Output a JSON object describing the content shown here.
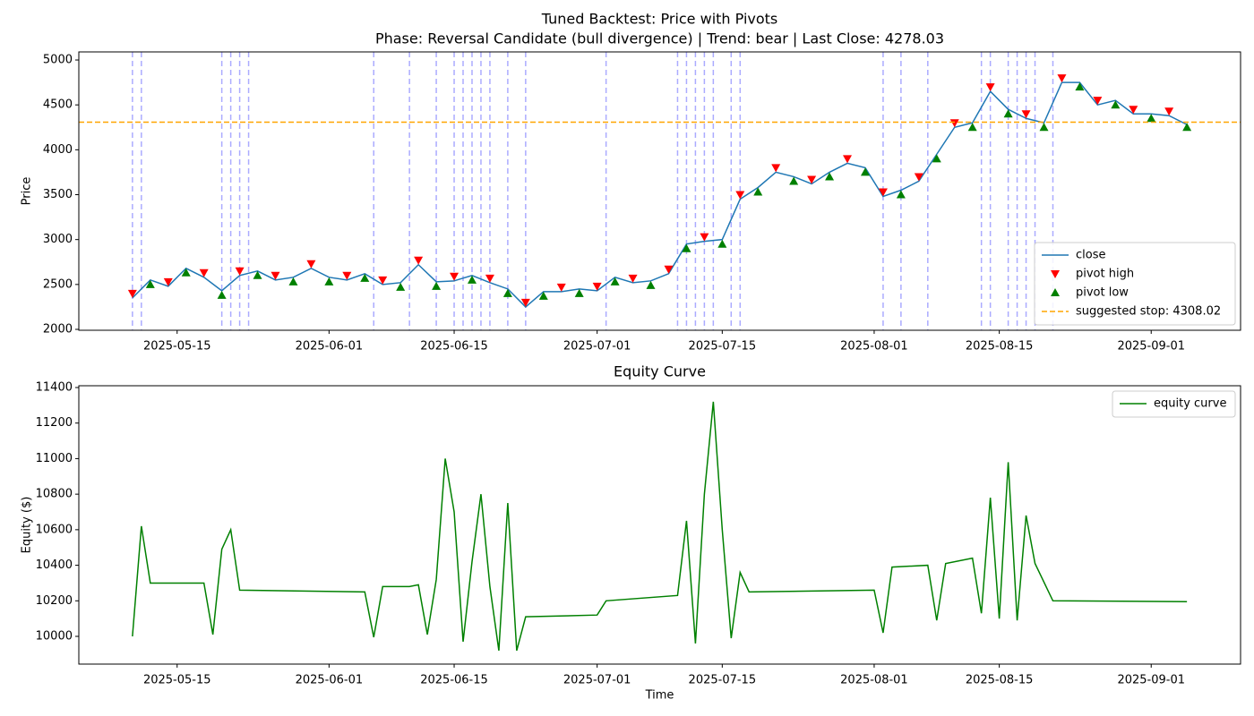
{
  "chart_data": [
    {
      "type": "line",
      "title": "Tuned Backtest: Price with Pivots",
      "subtitle": "Phase: Reversal Candidate (bull divergence) | Trend: bear | Last Close: 4278.03",
      "y_label": "Price",
      "xlim": [
        "2025-05-04",
        "2025-09-11"
      ],
      "xticks": [
        "2025-05-15",
        "2025-06-01",
        "2025-06-15",
        "2025-07-01",
        "2025-07-15",
        "2025-08-01",
        "2025-08-15",
        "2025-09-01"
      ],
      "ylim": [
        1990,
        5090
      ],
      "yticks": [
        2000,
        2500,
        3000,
        3500,
        4000,
        4500,
        5000
      ],
      "legend": "lower right",
      "series": [
        {
          "name": "close",
          "color": "#1f77b4",
          "x": [
            "2025-05-10",
            "2025-05-12",
            "2025-05-14",
            "2025-05-16",
            "2025-05-18",
            "2025-05-20",
            "2025-05-22",
            "2025-05-24",
            "2025-05-26",
            "2025-05-28",
            "2025-05-30",
            "2025-06-01",
            "2025-06-03",
            "2025-06-05",
            "2025-06-07",
            "2025-06-09",
            "2025-06-11",
            "2025-06-13",
            "2025-06-15",
            "2025-06-17",
            "2025-06-19",
            "2025-06-21",
            "2025-06-23",
            "2025-06-25",
            "2025-06-27",
            "2025-06-29",
            "2025-07-01",
            "2025-07-03",
            "2025-07-05",
            "2025-07-07",
            "2025-07-09",
            "2025-07-11",
            "2025-07-13",
            "2025-07-15",
            "2025-07-17",
            "2025-07-19",
            "2025-07-21",
            "2025-07-23",
            "2025-07-25",
            "2025-07-27",
            "2025-07-29",
            "2025-07-31",
            "2025-08-02",
            "2025-08-04",
            "2025-08-06",
            "2025-08-08",
            "2025-08-10",
            "2025-08-12",
            "2025-08-14",
            "2025-08-16",
            "2025-08-18",
            "2025-08-20",
            "2025-08-22",
            "2025-08-24",
            "2025-08-26",
            "2025-08-28",
            "2025-08-30",
            "2025-09-01",
            "2025-09-03",
            "2025-09-05"
          ],
          "values": [
            2350,
            2550,
            2480,
            2680,
            2580,
            2430,
            2600,
            2650,
            2550,
            2580,
            2680,
            2580,
            2550,
            2620,
            2500,
            2520,
            2720,
            2530,
            2540,
            2600,
            2520,
            2450,
            2250,
            2420,
            2420,
            2450,
            2430,
            2580,
            2520,
            2540,
            2620,
            2950,
            2980,
            3000,
            3450,
            3580,
            3750,
            3700,
            3620,
            3750,
            3850,
            3800,
            3480,
            3550,
            3650,
            3950,
            4250,
            4300,
            4650,
            4450,
            4350,
            4300,
            4750,
            4750,
            4500,
            4550,
            4400,
            4400,
            4380,
            4280
          ]
        },
        {
          "name": "pivot high",
          "color": "red",
          "marker": "triangle-down",
          "x": [
            "2025-05-10",
            "2025-05-14",
            "2025-05-18",
            "2025-05-22",
            "2025-05-26",
            "2025-05-30",
            "2025-06-03",
            "2025-06-07",
            "2025-06-11",
            "2025-06-15",
            "2025-06-19",
            "2025-06-23",
            "2025-06-27",
            "2025-07-01",
            "2025-07-05",
            "2025-07-09",
            "2025-07-13",
            "2025-07-17",
            "2025-07-21",
            "2025-07-25",
            "2025-07-29",
            "2025-08-02",
            "2025-08-06",
            "2025-08-10",
            "2025-08-14",
            "2025-08-18",
            "2025-08-22",
            "2025-08-26",
            "2025-08-30",
            "2025-09-03"
          ],
          "values": [
            2400,
            2530,
            2630,
            2650,
            2600,
            2730,
            2600,
            2550,
            2770,
            2590,
            2570,
            2300,
            2470,
            2480,
            2570,
            2670,
            3030,
            3500,
            3800,
            3670,
            3900,
            3530,
            3700,
            4300,
            4700,
            4400,
            4800,
            4550,
            4450,
            4430
          ]
        },
        {
          "name": "pivot low",
          "color": "green",
          "marker": "triangle-up",
          "x": [
            "2025-05-12",
            "2025-05-16",
            "2025-05-20",
            "2025-05-24",
            "2025-05-28",
            "2025-06-01",
            "2025-06-05",
            "2025-06-09",
            "2025-06-13",
            "2025-06-17",
            "2025-06-21",
            "2025-06-25",
            "2025-06-29",
            "2025-07-03",
            "2025-07-07",
            "2025-07-11",
            "2025-07-15",
            "2025-07-19",
            "2025-07-23",
            "2025-07-27",
            "2025-07-31",
            "2025-08-04",
            "2025-08-08",
            "2025-08-12",
            "2025-08-16",
            "2025-08-20",
            "2025-08-24",
            "2025-08-28",
            "2025-09-01",
            "2025-09-05"
          ],
          "values": [
            2500,
            2630,
            2380,
            2600,
            2530,
            2530,
            2570,
            2470,
            2480,
            2550,
            2400,
            2370,
            2400,
            2530,
            2490,
            2900,
            2950,
            3530,
            3650,
            3700,
            3750,
            3500,
            3900,
            4250,
            4400,
            4250,
            4700,
            4500,
            4350,
            4250
          ]
        }
      ],
      "hline": {
        "name": "suggested stop: 4308.02",
        "value": 4308.02,
        "color": "orange"
      },
      "vlines": {
        "color": "blue",
        "x": [
          "2025-05-10",
          "2025-05-11",
          "2025-05-20",
          "2025-05-21",
          "2025-05-22",
          "2025-05-23",
          "2025-06-06",
          "2025-06-10",
          "2025-06-13",
          "2025-06-15",
          "2025-06-16",
          "2025-06-17",
          "2025-06-18",
          "2025-06-19",
          "2025-06-21",
          "2025-06-23",
          "2025-07-02",
          "2025-07-10",
          "2025-07-11",
          "2025-07-12",
          "2025-07-13",
          "2025-07-14",
          "2025-07-16",
          "2025-07-17",
          "2025-08-02",
          "2025-08-04",
          "2025-08-07",
          "2025-08-13",
          "2025-08-14",
          "2025-08-16",
          "2025-08-17",
          "2025-08-18",
          "2025-08-19",
          "2025-08-21"
        ]
      }
    },
    {
      "type": "line",
      "title": "Equity Curve",
      "x_label": "Time",
      "y_label": "Equity ($)",
      "xlim": [
        "2025-05-04",
        "2025-09-11"
      ],
      "xticks": [
        "2025-05-15",
        "2025-06-01",
        "2025-06-15",
        "2025-07-01",
        "2025-07-15",
        "2025-08-01",
        "2025-08-15",
        "2025-09-01"
      ],
      "ylim": [
        9844,
        11410
      ],
      "yticks": [
        10000,
        10200,
        10400,
        10600,
        10800,
        11000,
        11200,
        11400
      ],
      "legend": "upper right",
      "series": [
        {
          "name": "equity curve",
          "color": "green",
          "x": [
            "2025-05-10",
            "2025-05-11",
            "2025-05-12",
            "2025-05-18",
            "2025-05-19",
            "2025-05-20",
            "2025-05-21",
            "2025-05-22",
            "2025-06-05",
            "2025-06-06",
            "2025-06-07",
            "2025-06-10",
            "2025-06-11",
            "2025-06-12",
            "2025-06-13",
            "2025-06-14",
            "2025-06-15",
            "2025-06-16",
            "2025-06-17",
            "2025-06-18",
            "2025-06-19",
            "2025-06-20",
            "2025-06-21",
            "2025-06-22",
            "2025-06-23",
            "2025-07-01",
            "2025-07-02",
            "2025-07-10",
            "2025-07-11",
            "2025-07-12",
            "2025-07-13",
            "2025-07-14",
            "2025-07-15",
            "2025-07-16",
            "2025-07-17",
            "2025-07-18",
            "2025-08-01",
            "2025-08-02",
            "2025-08-03",
            "2025-08-07",
            "2025-08-08",
            "2025-08-09",
            "2025-08-12",
            "2025-08-13",
            "2025-08-14",
            "2025-08-15",
            "2025-08-16",
            "2025-08-17",
            "2025-08-18",
            "2025-08-19",
            "2025-08-21",
            "2025-09-05"
          ],
          "values": [
            10000,
            10620,
            10300,
            10300,
            10010,
            10490,
            10600,
            10260,
            10250,
            9995,
            10280,
            10280,
            10290,
            10010,
            10320,
            11000,
            10700,
            9970,
            10420,
            10800,
            10280,
            9920,
            10750,
            9920,
            10110,
            10120,
            10200,
            10230,
            10650,
            9960,
            10800,
            11320,
            10600,
            9990,
            10360,
            10250,
            10260,
            10020,
            10390,
            10400,
            10090,
            10410,
            10440,
            10130,
            10780,
            10100,
            10980,
            10090,
            10680,
            10410,
            10200,
            10195
          ]
        }
      ]
    }
  ]
}
